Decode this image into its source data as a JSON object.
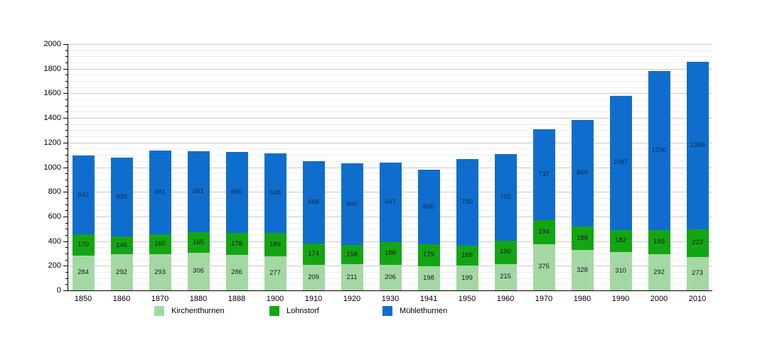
{
  "chart_data": {
    "type": "bar",
    "stacked": true,
    "title": "",
    "xlabel": "",
    "ylabel": "",
    "categories": [
      "1850",
      "1860",
      "1870",
      "1880",
      "1888",
      "1900",
      "1910",
      "1920",
      "1930",
      "1941",
      "1950",
      "1960",
      "1970",
      "1980",
      "1990",
      "2000",
      "2010"
    ],
    "series": [
      {
        "name": "Kirchenthurnen",
        "color": "#a3d8a3",
        "label_color": "#1a1a1a",
        "values": [
          284,
          292,
          293,
          306,
          286,
          277,
          209,
          211,
          206,
          198,
          199,
          215,
          375,
          328,
          310,
          292,
          273
        ]
      },
      {
        "name": "Lohnstorf",
        "color": "#14a514",
        "label_color": "#1a1a1a",
        "values": [
          170,
          146,
          160,
          165,
          178,
          189,
          174,
          158,
          186,
          179,
          166,
          190,
          194,
          188,
          182,
          199,
          223
        ]
      },
      {
        "name": "Mühlethurnen",
        "color": "#0f6ecd",
        "label_color": "#0b2b55",
        "values": [
          642,
          639,
          681,
          661,
          660,
          648,
          668,
          660,
          647,
          600,
          700,
          702,
          737,
          869,
          1087,
          1290,
          1359
        ]
      }
    ],
    "ylim": [
      0,
      2000
    ],
    "y_major_step": 200,
    "y_minor_step": 50,
    "y_tick_labels": [
      "0",
      "200",
      "400",
      "600",
      "800",
      "1000",
      "1200",
      "1400",
      "1600",
      "1800",
      "2000"
    ],
    "grid": true,
    "legend_position": "bottom",
    "background_color": "#ffffff",
    "axis_color": "#000000"
  }
}
